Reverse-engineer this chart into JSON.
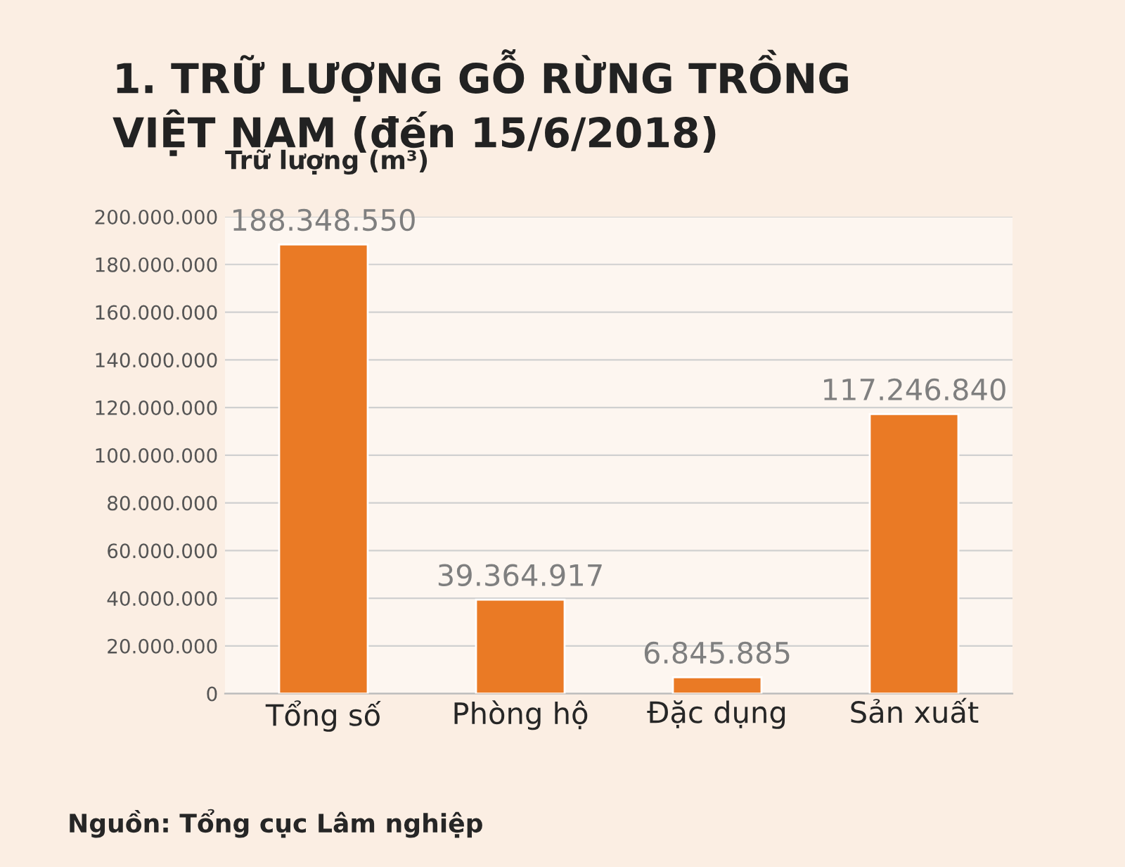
{
  "chart_data": {
    "type": "bar",
    "title": "1. TRỮ LƯỢNG GỖ RỪNG TRỒNG\nVIỆT NAM (đến 15/6/2018)",
    "ylabel": "Trữ lượng (m³)",
    "categories": [
      "Tổng số",
      "Phòng hộ",
      "Đặc dụng",
      "Sản xuất"
    ],
    "values": [
      188348550,
      39364917,
      6845885,
      117246840
    ],
    "value_labels": [
      "188.348.550",
      "39.364.917",
      "6.845.885",
      "117.246.840"
    ],
    "color": "#ea7a25",
    "ylim": [
      0,
      200000000
    ],
    "yticks": [
      0,
      {
        "value": 20000000,
        "label": "20.000.000"
      },
      {
        "value": 40000000,
        "label": "40.000.000"
      },
      {
        "value": 60000000,
        "label": "60.000.000"
      },
      {
        "value": 80000000,
        "label": "80.000.000"
      },
      {
        "value": 100000000,
        "label": "100.000.000"
      },
      {
        "value": 120000000,
        "label": "120.000.000"
      },
      {
        "value": 140000000,
        "label": "140.000.000"
      },
      {
        "value": 160000000,
        "label": "160.000.000"
      },
      {
        "value": 180000000,
        "label": "180.000.000"
      },
      {
        "value": 200000000,
        "label": "200.000.000"
      }
    ],
    "grid": "y",
    "legend": false,
    "annotations": [
      "Nguồn: Tổng cục Lâm nghiệp"
    ]
  }
}
